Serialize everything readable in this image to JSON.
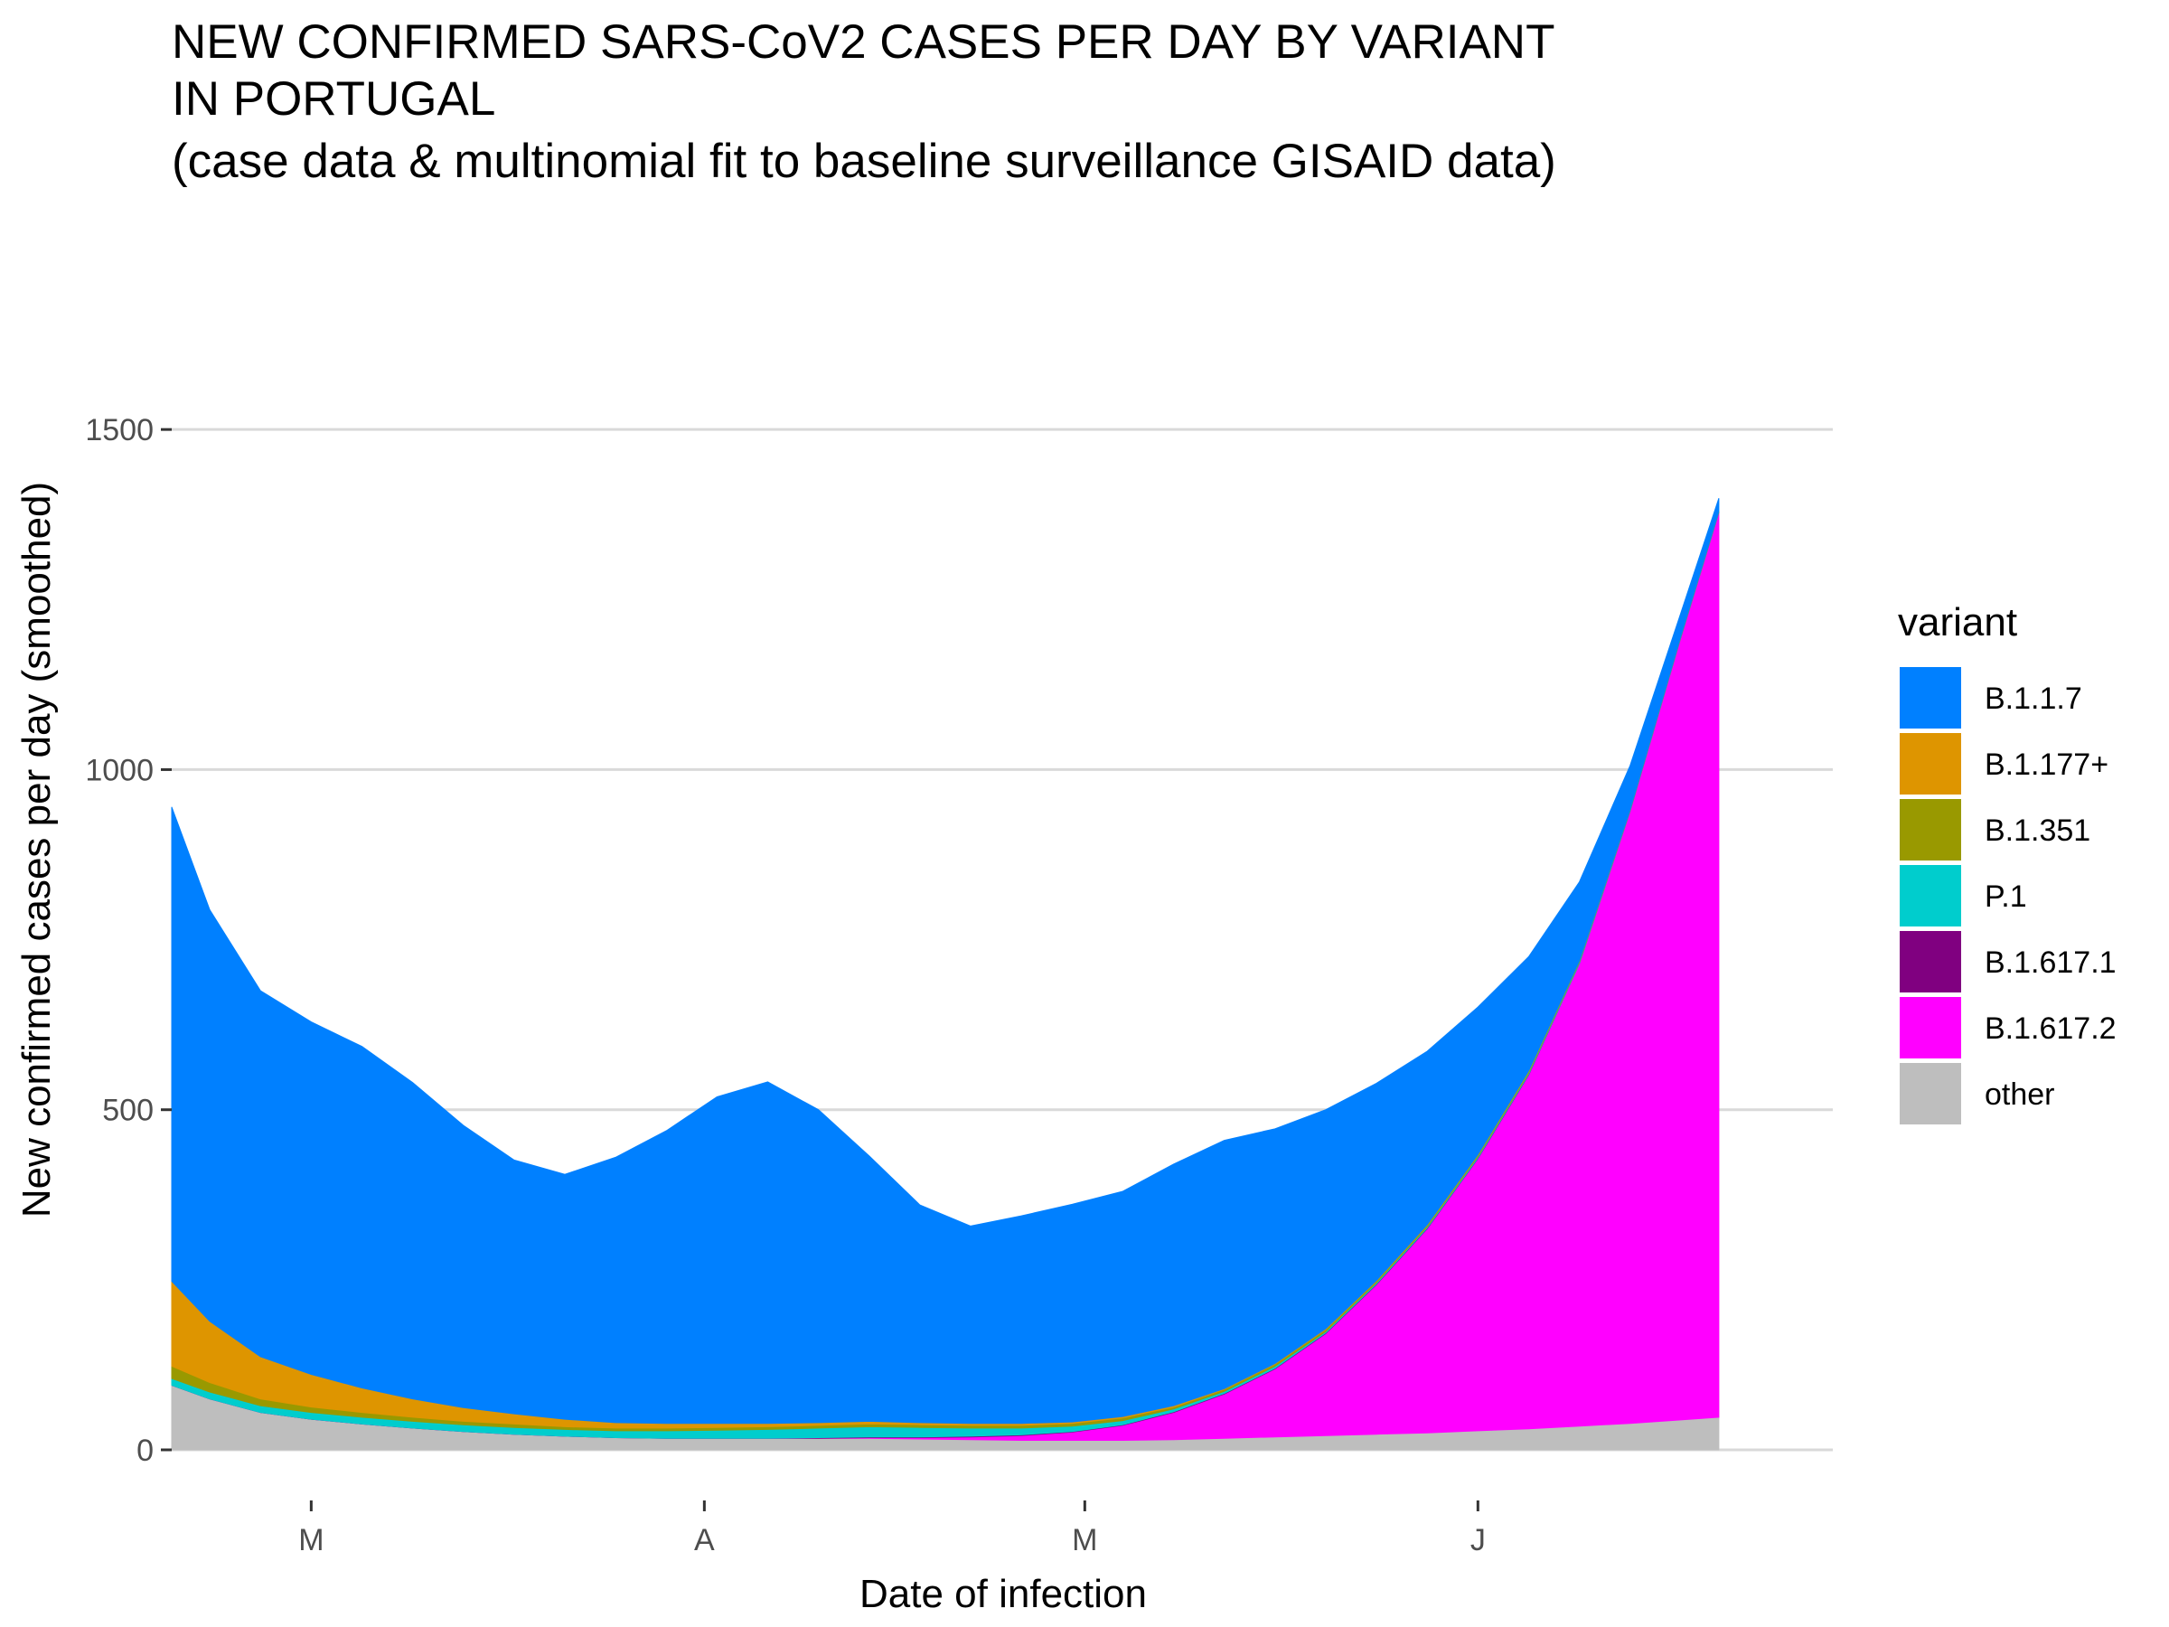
{
  "chart_data": {
    "type": "area",
    "stacked": true,
    "title": [
      "NEW CONFIRMED SARS-CoV2 CASES PER DAY BY VARIANT",
      "IN PORTUGAL",
      "(case data & multinomial fit to baseline surveillance GISAID data)"
    ],
    "xlabel": "Date of infection",
    "ylabel": "New confirmed cases per day (smoothed)",
    "ylim": [
      0,
      1560
    ],
    "yticks": [
      0,
      500,
      1000,
      1500
    ],
    "xlim": [
      "2021-02-18",
      "2021-06-22"
    ],
    "xticks": [
      {
        "date": "2021-03-01",
        "label": "M"
      },
      {
        "date": "2021-04-01",
        "label": "A"
      },
      {
        "date": "2021-05-01",
        "label": "M"
      },
      {
        "date": "2021-06-01",
        "label": "J"
      }
    ],
    "grid": true,
    "legend": {
      "title": "variant",
      "position": "right"
    },
    "x": [
      "2021-02-18",
      "2021-02-21",
      "2021-02-25",
      "2021-03-01",
      "2021-03-05",
      "2021-03-09",
      "2021-03-13",
      "2021-03-17",
      "2021-03-21",
      "2021-03-25",
      "2021-03-29",
      "2021-04-02",
      "2021-04-06",
      "2021-04-10",
      "2021-04-14",
      "2021-04-18",
      "2021-04-22",
      "2021-04-26",
      "2021-04-30",
      "2021-05-04",
      "2021-05-08",
      "2021-05-12",
      "2021-05-16",
      "2021-05-20",
      "2021-05-24",
      "2021-05-28",
      "2021-06-01",
      "2021-06-05",
      "2021-06-09",
      "2021-06-13",
      "2021-06-17",
      "2021-06-20"
    ],
    "series": [
      {
        "name": "other",
        "color": "#bebebe",
        "values": [
          95,
          75,
          55,
          45,
          38,
          32,
          27,
          23,
          20,
          18,
          17,
          17,
          17,
          17,
          17,
          16,
          15,
          14,
          14,
          14,
          15,
          17,
          19,
          21,
          23,
          25,
          28,
          31,
          35,
          39,
          44,
          48
        ]
      },
      {
        "name": "B.1.617.2",
        "color": "#ff00ff",
        "values": [
          0,
          0,
          0,
          0,
          0,
          0,
          0,
          0,
          0,
          0,
          0,
          0,
          0,
          0,
          1,
          2,
          4,
          7,
          12,
          22,
          40,
          65,
          100,
          150,
          220,
          300,
          400,
          520,
          680,
          900,
          1150,
          1330
        ]
      },
      {
        "name": "B.1.617.1",
        "color": "#800080",
        "values": [
          0,
          0,
          0,
          0,
          0,
          0,
          0,
          0,
          0,
          0,
          0,
          0,
          0,
          1,
          1,
          1,
          1,
          1,
          1,
          1,
          1,
          1,
          1,
          1,
          1,
          1,
          1,
          1,
          0,
          0,
          0,
          0
        ]
      },
      {
        "name": "P.1",
        "color": "#00cdcd",
        "values": [
          10,
          10,
          10,
          10,
          10,
          10,
          10,
          10,
          10,
          10,
          11,
          12,
          13,
          14,
          15,
          14,
          12,
          10,
          8,
          6,
          4,
          3,
          3,
          2,
          2,
          2,
          2,
          2,
          2,
          1,
          1,
          1
        ]
      },
      {
        "name": "B.1.351",
        "color": "#999900",
        "values": [
          18,
          14,
          10,
          8,
          7,
          6,
          5,
          5,
          4,
          4,
          4,
          4,
          4,
          4,
          4,
          4,
          4,
          4,
          4,
          4,
          3,
          3,
          3,
          3,
          2,
          2,
          2,
          2,
          2,
          1,
          1,
          1
        ]
      },
      {
        "name": "B.1.177+",
        "color": "#de9500",
        "values": [
          125,
          90,
          62,
          48,
          36,
          27,
          20,
          15,
          11,
          8,
          7,
          6,
          5,
          4,
          4,
          3,
          3,
          3,
          2,
          2,
          2,
          1,
          1,
          1,
          1,
          1,
          1,
          1,
          0,
          0,
          0,
          0
        ]
      },
      {
        "name": "B.1.1.7",
        "color": "#0080ff",
        "values": [
          697,
          605,
          538,
          518,
          502,
          465,
          415,
          373,
          360,
          390,
          430,
          480,
          502,
          460,
          390,
          320,
          290,
          305,
          320,
          331,
          355,
          365,
          345,
          322,
          290,
          255,
          217,
          168,
          116,
          65,
          34,
          19
        ]
      }
    ],
    "legend_order": [
      "B.1.1.7",
      "B.1.177+",
      "B.1.351",
      "P.1",
      "B.1.617.1",
      "B.1.617.2",
      "other"
    ]
  }
}
